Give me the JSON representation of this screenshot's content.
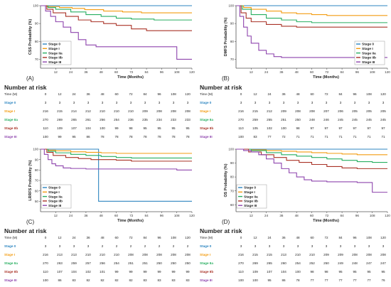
{
  "common": {
    "xlabel": "Time (Months)",
    "xticks": [
      12,
      24,
      36,
      48,
      60,
      72,
      84,
      96,
      108,
      120
    ],
    "stage_names": [
      "Stage 0",
      "Stage I",
      "Stage IIa",
      "Stage IIb",
      "Stage III"
    ],
    "stage_colors": [
      "#2e86c1",
      "#f39c12",
      "#27ae60",
      "#a93226",
      "#8e44ad"
    ],
    "risk_title": "Number at risk",
    "risk_header": [
      "Time (M)",
      "0",
      "12",
      "24",
      "36",
      "48",
      "60",
      "72",
      "84",
      "96",
      "108",
      "120"
    ],
    "risk_row_labels": [
      "Stage 0",
      "Stage I",
      "Stage IIa",
      "Stage IIb",
      "Stage III"
    ]
  },
  "chart_data": [
    {
      "type": "line",
      "panel": "(A)",
      "ylabel": "CSS Probability (%)",
      "xlabel": "Time (Months)",
      "ylim": [
        65,
        100
      ],
      "yticks": [
        70,
        80,
        90,
        100
      ],
      "xlim": [
        0,
        120
      ],
      "legend_position": "bottom-left",
      "series": [
        {
          "name": "Stage 0",
          "color": "#2e86c1",
          "points": [
            [
              0,
              100
            ],
            [
              120,
              100
            ]
          ]
        },
        {
          "name": "Stage I",
          "color": "#f39c12",
          "points": [
            [
              0,
              100
            ],
            [
              5,
              99.5
            ],
            [
              15,
              99
            ],
            [
              25,
              98.5
            ],
            [
              35,
              97.8
            ],
            [
              50,
              97
            ],
            [
              65,
              96.5
            ],
            [
              80,
              96
            ],
            [
              120,
              96
            ]
          ]
        },
        {
          "name": "Stage IIa",
          "color": "#27ae60",
          "points": [
            [
              0,
              100
            ],
            [
              6,
              99
            ],
            [
              12,
              98
            ],
            [
              24,
              96.5
            ],
            [
              36,
              95
            ],
            [
              48,
              94
            ],
            [
              60,
              93
            ],
            [
              72,
              92.5
            ],
            [
              90,
              92
            ],
            [
              120,
              92
            ]
          ]
        },
        {
          "name": "Stage IIb",
          "color": "#a93226",
          "points": [
            [
              0,
              100
            ],
            [
              5,
              98
            ],
            [
              10,
              96
            ],
            [
              20,
              94
            ],
            [
              30,
              92
            ],
            [
              40,
              91
            ],
            [
              50,
              90
            ],
            [
              60,
              89
            ],
            [
              72,
              87
            ],
            [
              84,
              86
            ],
            [
              120,
              86
            ]
          ]
        },
        {
          "name": "Stage III",
          "color": "#8e44ad",
          "points": [
            [
              0,
              100
            ],
            [
              4,
              97
            ],
            [
              8,
              94
            ],
            [
              12,
              91
            ],
            [
              18,
              88
            ],
            [
              24,
              85
            ],
            [
              30,
              81
            ],
            [
              36,
              78
            ],
            [
              44,
              77
            ],
            [
              100,
              77
            ],
            [
              108,
              70
            ],
            [
              120,
              70
            ]
          ]
        }
      ],
      "risk_table": [
        [
          "3",
          "3",
          "3",
          "3",
          "3",
          "3",
          "3",
          "3",
          "3",
          "3",
          "3"
        ],
        [
          "216",
          "215",
          "214",
          "212",
          "210",
          "210",
          "210",
          "209",
          "208",
          "208",
          "208"
        ],
        [
          "270",
          "269",
          "265",
          "261",
          "256",
          "254",
          "236",
          "235",
          "234",
          "233",
          "233"
        ],
        [
          "110",
          "109",
          "107",
          "104",
          "100",
          "99",
          "98",
          "95",
          "95",
          "95",
          "95"
        ],
        [
          "100",
          "99",
          "95",
          "86",
          "78",
          "78",
          "78",
          "78",
          "78",
          "78",
          "78"
        ]
      ]
    },
    {
      "type": "line",
      "panel": "(B)",
      "ylabel": "DMFS Probability (%)",
      "xlabel": "Time (Months)",
      "ylim": [
        65,
        100
      ],
      "yticks": [
        70,
        80,
        90,
        100
      ],
      "xlim": [
        0,
        120
      ],
      "legend_position": "bottom-right",
      "series": [
        {
          "name": "Stage 0",
          "color": "#2e86c1",
          "points": [
            [
              0,
              100
            ],
            [
              120,
              100
            ]
          ]
        },
        {
          "name": "Stage I",
          "color": "#f39c12",
          "points": [
            [
              0,
              100
            ],
            [
              6,
              99
            ],
            [
              12,
              98
            ],
            [
              24,
              97
            ],
            [
              36,
              96
            ],
            [
              48,
              95.5
            ],
            [
              60,
              95
            ],
            [
              72,
              94.5
            ],
            [
              120,
              94.5
            ]
          ]
        },
        {
          "name": "Stage IIa",
          "color": "#27ae60",
          "points": [
            [
              0,
              100
            ],
            [
              5,
              98
            ],
            [
              12,
              95
            ],
            [
              24,
              93
            ],
            [
              36,
              92
            ],
            [
              48,
              91
            ],
            [
              60,
              90.5
            ],
            [
              72,
              90.5
            ],
            [
              120,
              90.5
            ]
          ]
        },
        {
          "name": "Stage IIb",
          "color": "#a93226",
          "points": [
            [
              0,
              100
            ],
            [
              4,
              96
            ],
            [
              8,
              93
            ],
            [
              12,
              91
            ],
            [
              24,
              89.5
            ],
            [
              36,
              88.5
            ],
            [
              48,
              88
            ],
            [
              120,
              88
            ]
          ]
        },
        {
          "name": "Stage III",
          "color": "#8e44ad",
          "points": [
            [
              0,
              100
            ],
            [
              3,
              94
            ],
            [
              6,
              88
            ],
            [
              9,
              83
            ],
            [
              12,
              79
            ],
            [
              18,
              75
            ],
            [
              24,
              73
            ],
            [
              30,
              71.5
            ],
            [
              36,
              71
            ],
            [
              120,
              71
            ]
          ]
        }
      ],
      "risk_table": [
        [
          "3",
          "3",
          "3",
          "3",
          "3",
          "3",
          "3",
          "3",
          "3",
          "3",
          "3"
        ],
        [
          "216",
          "215",
          "212",
          "209",
          "208",
          "208",
          "207",
          "206",
          "205",
          "205",
          "205"
        ],
        [
          "270",
          "259",
          "255",
          "251",
          "250",
          "248",
          "246",
          "245",
          "245",
          "245",
          "245"
        ],
        [
          "110",
          "105",
          "102",
          "100",
          "98",
          "97",
          "97",
          "97",
          "97",
          "97",
          "97"
        ],
        [
          "100",
          "83",
          "77",
          "72",
          "71",
          "71",
          "71",
          "71",
          "71",
          "71",
          "71"
        ]
      ]
    },
    {
      "type": "line",
      "panel": "(C)",
      "ylabel": "LRRFS Probability (%)",
      "xlabel": "Time (Months)",
      "ylim": [
        40,
        100
      ],
      "yticks": [
        50,
        60,
        70,
        80,
        90,
        100
      ],
      "xlim": [
        0,
        120
      ],
      "legend_position": "bottom-left",
      "series": [
        {
          "name": "Stage 0",
          "color": "#2e86c1",
          "points": [
            [
              0,
              100
            ],
            [
              46,
              100
            ],
            [
              46,
              50
            ],
            [
              120,
              50
            ]
          ]
        },
        {
          "name": "Stage I",
          "color": "#f39c12",
          "points": [
            [
              0,
              100
            ],
            [
              6,
              99
            ],
            [
              12,
              98.5
            ],
            [
              24,
              97.5
            ],
            [
              36,
              97
            ],
            [
              48,
              96.5
            ],
            [
              60,
              96
            ],
            [
              120,
              96
            ]
          ]
        },
        {
          "name": "Stage IIa",
          "color": "#27ae60",
          "points": [
            [
              0,
              100
            ],
            [
              6,
              98
            ],
            [
              12,
              96.5
            ],
            [
              24,
              95
            ],
            [
              36,
              94
            ],
            [
              48,
              93
            ],
            [
              60,
              92
            ],
            [
              72,
              91.5
            ],
            [
              120,
              91.5
            ]
          ]
        },
        {
          "name": "Stage IIb",
          "color": "#a93226",
          "points": [
            [
              0,
              100
            ],
            [
              5,
              97
            ],
            [
              10,
              94
            ],
            [
              20,
              92
            ],
            [
              30,
              91
            ],
            [
              40,
              90
            ],
            [
              60,
              89.5
            ],
            [
              72,
              88.5
            ],
            [
              120,
              88.5
            ]
          ]
        },
        {
          "name": "Stage III",
          "color": "#8e44ad",
          "points": [
            [
              0,
              100
            ],
            [
              3,
              95
            ],
            [
              6,
              90
            ],
            [
              9,
              86
            ],
            [
              12,
              84
            ],
            [
              18,
              82
            ],
            [
              24,
              81.5
            ],
            [
              36,
              81
            ],
            [
              96,
              81
            ],
            [
              108,
              80
            ],
            [
              120,
              80
            ]
          ]
        }
      ],
      "risk_table": [
        [
          "3",
          "3",
          "3",
          "3",
          "2",
          "2",
          "2",
          "2",
          "2",
          "2",
          "2"
        ],
        [
          "216",
          "213",
          "213",
          "210",
          "210",
          "210",
          "208",
          "208",
          "208",
          "208",
          "208"
        ],
        [
          "270",
          "263",
          "259",
          "257",
          "256",
          "254",
          "251",
          "251",
          "250",
          "250",
          "250"
        ],
        [
          "110",
          "107",
          "104",
          "102",
          "101",
          "99",
          "99",
          "99",
          "99",
          "99",
          "99"
        ],
        [
          "100",
          "86",
          "83",
          "82",
          "82",
          "82",
          "82",
          "83",
          "83",
          "83",
          "83"
        ]
      ]
    },
    {
      "type": "line",
      "panel": "(D)",
      "ylabel": "OS Probability (%)",
      "xlabel": "Time (Months)",
      "ylim": [
        55,
        100
      ],
      "yticks": [
        60,
        70,
        80,
        90,
        100
      ],
      "xlim": [
        0,
        120
      ],
      "legend_position": "bottom-left",
      "series": [
        {
          "name": "Stage 0",
          "color": "#2e86c1",
          "points": [
            [
              0,
              100
            ],
            [
              120,
              100
            ]
          ]
        },
        {
          "name": "Stage I",
          "color": "#f39c12",
          "points": [
            [
              0,
              100
            ],
            [
              12,
              99.5
            ],
            [
              24,
              99
            ],
            [
              36,
              98.5
            ],
            [
              48,
              98
            ],
            [
              60,
              97.5
            ],
            [
              72,
              97
            ],
            [
              84,
              96.5
            ],
            [
              96,
              96
            ],
            [
              120,
              96
            ]
          ]
        },
        {
          "name": "Stage IIa",
          "color": "#27ae60",
          "points": [
            [
              0,
              100
            ],
            [
              12,
              99
            ],
            [
              24,
              97.5
            ],
            [
              36,
              96
            ],
            [
              48,
              95
            ],
            [
              60,
              94
            ],
            [
              72,
              93
            ],
            [
              84,
              92
            ],
            [
              96,
              91
            ],
            [
              108,
              90.5
            ],
            [
              120,
              90.5
            ]
          ]
        },
        {
          "name": "Stage IIb",
          "color": "#a93226",
          "points": [
            [
              0,
              100
            ],
            [
              10,
              98
            ],
            [
              20,
              96
            ],
            [
              30,
              94
            ],
            [
              40,
              92
            ],
            [
              50,
              90.5
            ],
            [
              60,
              89
            ],
            [
              72,
              87.5
            ],
            [
              84,
              86.5
            ],
            [
              96,
              86
            ],
            [
              120,
              86
            ]
          ]
        },
        {
          "name": "Stage III",
          "color": "#8e44ad",
          "points": [
            [
              0,
              100
            ],
            [
              6,
              99
            ],
            [
              12,
              98
            ],
            [
              18,
              96
            ],
            [
              24,
              93
            ],
            [
              30,
              90
            ],
            [
              36,
              86
            ],
            [
              42,
              83
            ],
            [
              48,
              80
            ],
            [
              54,
              78
            ],
            [
              60,
              77
            ],
            [
              72,
              76.5
            ],
            [
              96,
              76
            ],
            [
              108,
              69
            ],
            [
              120,
              69
            ]
          ]
        }
      ],
      "risk_table": [
        [
          "3",
          "3",
          "3",
          "3",
          "3",
          "3",
          "3",
          "3",
          "3",
          "3",
          "3"
        ],
        [
          "216",
          "215",
          "215",
          "213",
          "210",
          "210",
          "209",
          "209",
          "208",
          "208",
          "208"
        ],
        [
          "270",
          "269",
          "265",
          "260",
          "254",
          "252",
          "250",
          "249",
          "248",
          "247",
          "247"
        ],
        [
          "110",
          "109",
          "107",
          "104",
          "100",
          "98",
          "98",
          "95",
          "95",
          "95",
          "95"
        ],
        [
          "100",
          "100",
          "95",
          "86",
          "78",
          "77",
          "77",
          "77",
          "77",
          "77",
          "76"
        ]
      ]
    }
  ]
}
